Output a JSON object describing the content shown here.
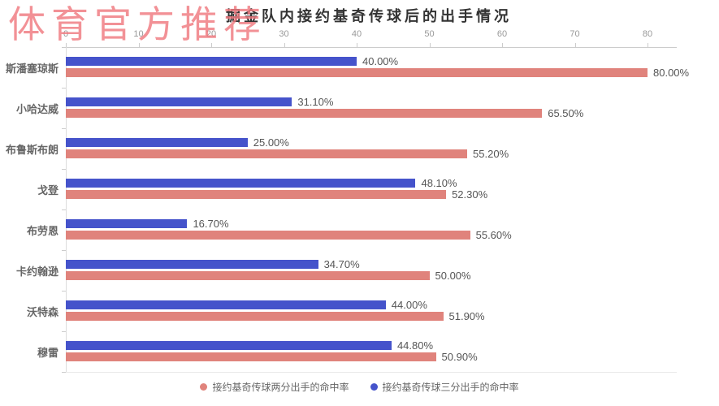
{
  "watermark": {
    "text": "体育官方推荐",
    "color": "#f0797f"
  },
  "chart_data": {
    "type": "bar",
    "orientation": "horizontal",
    "title": "掘金队内接约基奇传球后的出手情况",
    "title_color": "#333333",
    "categories": [
      "斯潘塞琼斯",
      "小哈达威",
      "布鲁斯布朗",
      "戈登",
      "布劳恩",
      "卡约翰逊",
      "沃特森",
      "穆雷"
    ],
    "series": [
      {
        "name": "接约基奇传球两分出手的命中率",
        "color": "#e0837c",
        "values": [
          80.0,
          65.5,
          55.2,
          52.3,
          55.6,
          50.0,
          51.9,
          50.9
        ],
        "labels": [
          "80.00%",
          "65.50%",
          "55.20%",
          "52.30%",
          "55.60%",
          "50.00%",
          "51.90%",
          "50.90%"
        ]
      },
      {
        "name": "接约基奇传球三分出手的命中率",
        "color": "#4553cb",
        "values": [
          40.0,
          31.1,
          25.0,
          48.1,
          16.7,
          34.7,
          44.0,
          44.8
        ],
        "labels": [
          "40.00%",
          "31.10%",
          "25.00%",
          "48.10%",
          "16.70%",
          "34.70%",
          "44.00%",
          "44.80%"
        ]
      }
    ],
    "x_ticks": [
      "0",
      "10",
      "20",
      "30",
      "40",
      "50",
      "60",
      "70",
      "80"
    ],
    "x_tick_values": [
      0,
      10,
      20,
      30,
      40,
      50,
      60,
      70,
      80
    ],
    "xlim": [
      0,
      84
    ],
    "grid": false,
    "legend_position": "bottom",
    "axis_color": "#cccccc",
    "tick_label_color": "#999999",
    "value_label_color": "#555555",
    "category_label_color": "#666666"
  }
}
